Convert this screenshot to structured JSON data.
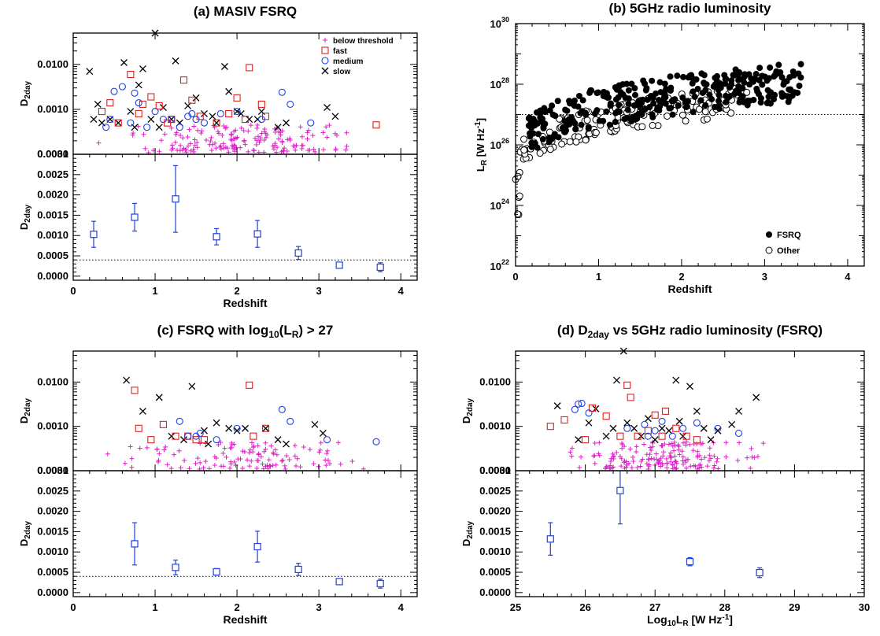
{
  "colors": {
    "below_threshold": "#e020c8",
    "fast": "#e02020",
    "medium": "#2040e0",
    "slow": "#000000",
    "binned": "#2040e0",
    "axis": "#000000"
  },
  "chart_data": [
    {
      "id": "a",
      "type": "scatter",
      "title": "(a) MASIV FSRQ",
      "subplots": [
        {
          "kind": "scatter",
          "ylabel": "D2day",
          "yscale": "log",
          "ylim": [
            0.0001,
            0.05
          ],
          "xlim": [
            0,
            4.2
          ],
          "ytick_labels": [
            "0.0001",
            "0.0010",
            "0.0100"
          ],
          "legend_position": "top-right",
          "legend": [
            "below threshold",
            "fast",
            "medium",
            "slow"
          ],
          "series": [
            {
              "name": "slow",
              "marker": "x",
              "x": [
                0.2,
                0.25,
                0.3,
                0.35,
                0.45,
                0.55,
                0.62,
                0.7,
                0.75,
                0.8,
                0.85,
                0.95,
                1.0,
                1.05,
                1.1,
                1.2,
                1.25,
                1.3,
                1.4,
                1.5,
                1.6,
                1.7,
                1.75,
                1.85,
                1.9,
                2.0,
                2.05,
                2.15,
                2.25,
                2.3,
                2.5,
                2.6,
                3.1,
                3.2
              ],
              "y": [
                0.007,
                0.0006,
                0.0013,
                0.0005,
                0.0006,
                0.0005,
                0.011,
                0.0009,
                0.0004,
                0.0035,
                0.008,
                0.0006,
                0.05,
                0.0004,
                0.0011,
                0.0006,
                0.012,
                0.0005,
                0.0012,
                0.0018,
                0.0008,
                0.0007,
                0.0005,
                0.009,
                0.0025,
                0.0009,
                0.0008,
                0.0006,
                0.0006,
                0.0009,
                0.0004,
                0.0005,
                0.0011,
                0.0007
              ]
            },
            {
              "name": "fast",
              "marker": "square",
              "x": [
                0.35,
                0.45,
                0.55,
                0.7,
                0.8,
                0.85,
                0.95,
                1.05,
                1.15,
                1.2,
                1.35,
                1.45,
                1.55,
                1.75,
                1.9,
                2.0,
                2.1,
                2.15,
                2.3,
                2.35,
                3.7
              ],
              "y": [
                0.0009,
                0.0014,
                0.0005,
                0.006,
                0.0008,
                0.0013,
                0.0019,
                0.0012,
                0.0005,
                0.0006,
                0.0045,
                0.0016,
                0.0007,
                0.0005,
                0.0008,
                0.0018,
                0.0006,
                0.0085,
                0.0013,
                0.0007,
                0.00045
              ]
            },
            {
              "name": "medium",
              "marker": "circle",
              "x": [
                0.4,
                0.45,
                0.5,
                0.6,
                0.7,
                0.75,
                0.8,
                0.9,
                1.0,
                1.1,
                1.2,
                1.3,
                1.4,
                1.45,
                1.5,
                1.6,
                1.8,
                2.0,
                2.3,
                2.55,
                2.65,
                2.9
              ],
              "y": [
                0.0004,
                0.0006,
                0.0025,
                0.0032,
                0.0005,
                0.0023,
                0.0014,
                0.0004,
                0.0009,
                0.0006,
                0.0006,
                0.0004,
                0.0007,
                0.0008,
                0.0006,
                0.0005,
                0.0008,
                0.0009,
                0.0006,
                0.0024,
                0.0013,
                0.0005
              ]
            }
          ],
          "below_threshold_count": 210
        },
        {
          "kind": "errorbar",
          "ylabel": "D2day",
          "xlabel": "Redshift",
          "yscale": "linear",
          "ylim": [
            -0.0001,
            0.003
          ],
          "xlim": [
            0,
            4.2
          ],
          "yticks": [
            0.0,
            0.0005,
            0.001,
            0.0015,
            0.002,
            0.0025,
            0.003
          ],
          "ytick_labels": [
            "0.0000",
            "0.0005",
            "0.0010",
            "0.0015",
            "0.0020",
            "0.0025",
            "0.0030"
          ],
          "xticks": [
            0,
            1,
            2,
            3,
            4
          ],
          "xtick_labels": [
            "0",
            "1",
            "2",
            "3",
            "4"
          ],
          "threshold": 0.0004,
          "points": [
            {
              "x": 0.25,
              "y": 0.00103,
              "err": 0.00032
            },
            {
              "x": 0.75,
              "y": 0.00145,
              "err": 0.00034
            },
            {
              "x": 1.25,
              "y": 0.0019,
              "err": 0.00082
            },
            {
              "x": 1.75,
              "y": 0.00097,
              "err": 0.0002
            },
            {
              "x": 2.25,
              "y": 0.00104,
              "err": 0.00033
            },
            {
              "x": 2.75,
              "y": 0.00057,
              "err": 0.00016
            },
            {
              "x": 3.25,
              "y": 0.00027,
              "err": 6e-05
            },
            {
              "x": 3.75,
              "y": 0.00022,
              "err": 0.00011
            }
          ]
        }
      ]
    },
    {
      "id": "b",
      "type": "scatter",
      "title": "(b) 5GHz radio luminosity",
      "xlabel": "Redshift",
      "ylabel": "LR [W Hz-1]",
      "yscale": "log",
      "ylim": [
        1e+22,
        1e+30
      ],
      "xlim": [
        0,
        4.2
      ],
      "xticks": [
        0,
        1,
        2,
        3,
        4
      ],
      "xtick_labels": [
        "0",
        "1",
        "2",
        "3",
        "4"
      ],
      "ytick_exponents": [
        "22",
        "24",
        "26",
        "28",
        "30"
      ],
      "threshold": 1e+27,
      "legend_position": "bottom-right",
      "legend": [
        "FSRQ",
        "Other"
      ],
      "series": [
        {
          "name": "FSRQ",
          "marker": "filled-circle",
          "count": 320
        },
        {
          "name": "Other",
          "marker": "open-circle",
          "count": 150
        }
      ]
    },
    {
      "id": "c",
      "type": "scatter",
      "title": "(c) FSRQ with log10(LR) > 27",
      "subplots": [
        {
          "kind": "scatter",
          "ylabel": "D2day",
          "yscale": "log",
          "ylim": [
            0.0001,
            0.05
          ],
          "xlim": [
            0,
            4.2
          ],
          "ytick_labels": [
            "0.0001",
            "0.0010",
            "0.0100"
          ],
          "series": [
            {
              "name": "slow",
              "marker": "x",
              "x": [
                0.65,
                0.85,
                1.05,
                1.2,
                1.35,
                1.45,
                1.6,
                1.65,
                1.75,
                1.9,
                2.0,
                2.1,
                2.35,
                2.5,
                2.6,
                2.95,
                3.05
              ],
              "y": [
                0.011,
                0.0022,
                0.0045,
                0.0006,
                0.0005,
                0.008,
                0.0008,
                0.0004,
                0.0012,
                0.0009,
                0.0008,
                0.0009,
                0.0009,
                0.0005,
                0.0004,
                0.0011,
                0.0007
              ]
            },
            {
              "name": "fast",
              "marker": "square",
              "x": [
                0.75,
                0.8,
                0.95,
                1.1,
                1.25,
                1.4,
                1.5,
                1.6,
                2.15,
                2.2,
                2.35
              ],
              "y": [
                0.0065,
                0.0009,
                0.0005,
                0.0011,
                0.0006,
                0.0006,
                0.0005,
                0.0005,
                0.0085,
                0.0006,
                0.0009
              ]
            },
            {
              "name": "medium",
              "marker": "circle",
              "x": [
                1.3,
                1.4,
                1.5,
                1.55,
                1.75,
                2.0,
                2.55,
                2.65,
                3.1,
                3.7
              ],
              "y": [
                0.0013,
                0.0006,
                0.0006,
                0.0007,
                0.0005,
                0.0009,
                0.0024,
                0.0013,
                0.0005,
                0.00045
              ]
            }
          ],
          "below_threshold_count": 150
        },
        {
          "kind": "errorbar",
          "ylabel": "D2day",
          "xlabel": "Redshift",
          "yscale": "linear",
          "ylim": [
            -0.0001,
            0.003
          ],
          "xlim": [
            0,
            4.2
          ],
          "yticks": [
            0.0,
            0.0005,
            0.001,
            0.0015,
            0.002,
            0.0025,
            0.003
          ],
          "ytick_labels": [
            "0.0000",
            "0.0005",
            "0.0010",
            "0.0015",
            "0.0020",
            "0.0025",
            "0.0030"
          ],
          "xticks": [
            0,
            1,
            2,
            3,
            4
          ],
          "xtick_labels": [
            "0",
            "1",
            "2",
            "3",
            "4"
          ],
          "threshold": 0.0004,
          "points": [
            {
              "x": 0.75,
              "y": 0.0012,
              "err": 0.00052
            },
            {
              "x": 1.25,
              "y": 0.00062,
              "err": 0.00018
            },
            {
              "x": 1.75,
              "y": 0.00051,
              "err": 8e-05
            },
            {
              "x": 2.25,
              "y": 0.00113,
              "err": 0.00038
            },
            {
              "x": 2.75,
              "y": 0.00057,
              "err": 0.00015
            },
            {
              "x": 3.25,
              "y": 0.00027,
              "err": 6e-05
            },
            {
              "x": 3.75,
              "y": 0.00022,
              "err": 0.00011
            }
          ]
        }
      ]
    },
    {
      "id": "d",
      "type": "scatter",
      "title": "(d) D2day vs 5GHz radio luminosity (FSRQ)",
      "subplots": [
        {
          "kind": "scatter",
          "ylabel": "D2day",
          "yscale": "log",
          "ylim": [
            0.0001,
            0.05
          ],
          "xlim": [
            25,
            30
          ],
          "ytick_labels": [
            "0.0001",
            "0.0010",
            "0.0100"
          ],
          "series": [
            {
              "name": "slow",
              "marker": "x",
              "x": [
                25.6,
                25.9,
                26.05,
                26.15,
                26.3,
                26.4,
                26.45,
                26.55,
                26.6,
                26.7,
                26.8,
                26.9,
                27.0,
                27.1,
                27.2,
                27.3,
                27.35,
                27.4,
                27.5,
                27.6,
                27.7,
                27.8,
                27.9,
                28.1,
                28.2,
                28.45
              ],
              "y": [
                0.0029,
                0.0005,
                0.0012,
                0.0025,
                0.0006,
                0.0009,
                0.011,
                0.05,
                0.0012,
                0.0009,
                0.0006,
                0.0015,
                0.0005,
                0.0009,
                0.0008,
                0.011,
                0.0013,
                0.0006,
                0.008,
                0.0022,
                0.0009,
                0.0005,
                0.0008,
                0.0011,
                0.0022,
                0.0045
              ]
            },
            {
              "name": "fast",
              "marker": "square",
              "x": [
                25.5,
                25.7,
                26.0,
                26.1,
                26.3,
                26.5,
                26.6,
                26.65,
                26.75,
                26.9,
                27.0,
                27.1,
                27.15,
                27.3,
                27.45,
                27.6
              ],
              "y": [
                0.001,
                0.0014,
                0.0005,
                0.0026,
                0.0017,
                0.0006,
                0.0085,
                0.0045,
                0.0006,
                0.0008,
                0.0018,
                0.0006,
                0.0022,
                0.0009,
                0.0006,
                0.0005
              ]
            },
            {
              "name": "medium",
              "marker": "circle",
              "x": [
                25.85,
                25.9,
                25.95,
                26.05,
                26.6,
                26.85,
                26.9,
                27.0,
                27.1,
                27.25,
                27.4,
                27.6,
                27.9,
                28.2
              ],
              "y": [
                0.0024,
                0.0032,
                0.0033,
                0.002,
                0.0009,
                0.0011,
                0.0006,
                0.0008,
                0.0013,
                0.0006,
                0.0009,
                0.0012,
                0.0009,
                0.0007
              ]
            }
          ],
          "below_threshold_count": 200
        },
        {
          "kind": "errorbar",
          "ylabel": "D2day",
          "xlabel": "Log10LR [W Hz-1]",
          "yscale": "linear",
          "ylim": [
            -0.0001,
            0.003
          ],
          "xlim": [
            25,
            30
          ],
          "yticks": [
            0.0,
            0.0005,
            0.001,
            0.0015,
            0.002,
            0.0025,
            0.003
          ],
          "ytick_labels": [
            "0.0000",
            "0.0005",
            "0.0010",
            "0.0015",
            "0.0020",
            "0.0025",
            "0.0030"
          ],
          "xticks": [
            25,
            26,
            27,
            28,
            29,
            30
          ],
          "xtick_labels": [
            "25",
            "26",
            "27",
            "28",
            "29",
            "30"
          ],
          "threshold": null,
          "points": [
            {
              "x": 25.5,
              "y": 0.00132,
              "err": 0.0004
            },
            {
              "x": 26.5,
              "y": 0.00251,
              "err": 0.00082
            },
            {
              "x": 27.5,
              "y": 0.00076,
              "err": 0.0001
            },
            {
              "x": 28.5,
              "y": 0.00049,
              "err": 0.00012
            }
          ]
        }
      ]
    }
  ]
}
